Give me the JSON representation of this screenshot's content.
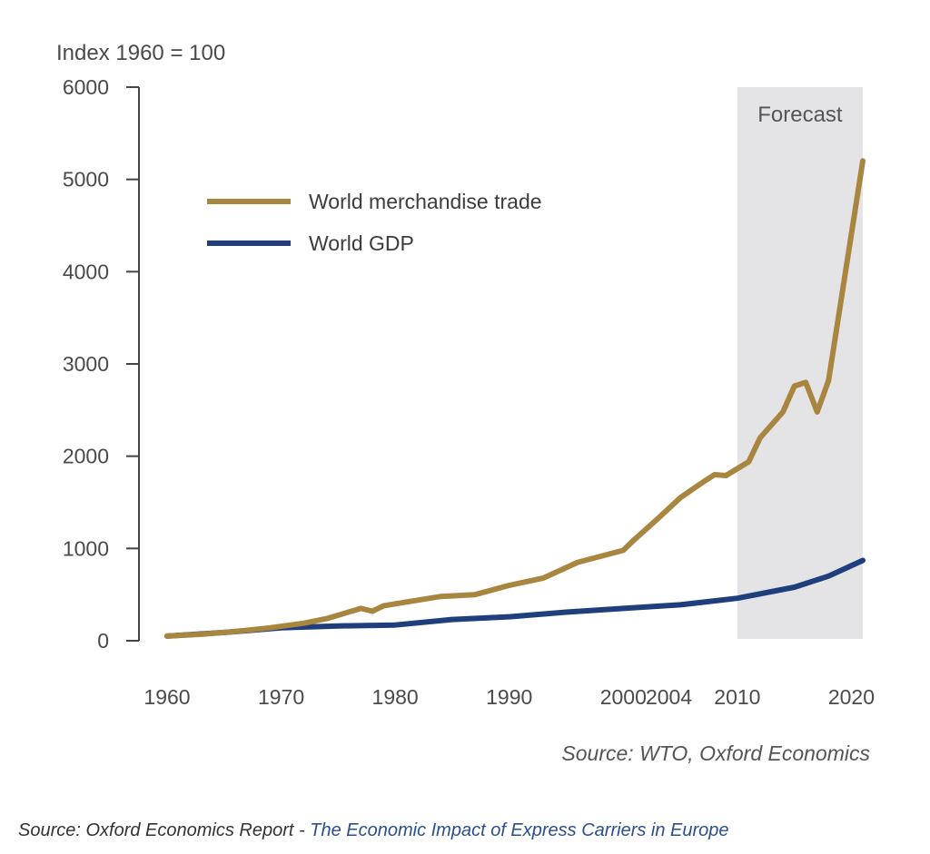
{
  "chart_data": {
    "type": "line",
    "ylabel": "Index 1960 = 100",
    "ylim": [
      0,
      6000
    ],
    "yticks": [
      0,
      1000,
      2000,
      3000,
      4000,
      5000,
      6000
    ],
    "xlim": [
      1960,
      2021
    ],
    "xticks": [
      1960,
      1970,
      1980,
      1990,
      2000,
      2004,
      2010,
      2020
    ],
    "forecast": {
      "label": "Forecast",
      "from": 2010,
      "to": 2021
    },
    "grid": false,
    "legend": "top-left",
    "series": [
      {
        "name": "World merchandise trade",
        "color": "#a8863f",
        "points": [
          [
            1960,
            50
          ],
          [
            1963,
            70
          ],
          [
            1966,
            100
          ],
          [
            1969,
            140
          ],
          [
            1972,
            190
          ],
          [
            1974,
            240
          ],
          [
            1977,
            350
          ],
          [
            1978,
            320
          ],
          [
            1979,
            380
          ],
          [
            1981,
            420
          ],
          [
            1984,
            480
          ],
          [
            1987,
            500
          ],
          [
            1990,
            600
          ],
          [
            1993,
            680
          ],
          [
            1996,
            850
          ],
          [
            2000,
            980
          ],
          [
            2001,
            1100
          ],
          [
            2003,
            1320
          ],
          [
            2005,
            1550
          ],
          [
            2007,
            1720
          ],
          [
            2008,
            1800
          ],
          [
            2009,
            1790
          ],
          [
            2011,
            1940
          ],
          [
            2012,
            2200
          ],
          [
            2014,
            2480
          ],
          [
            2015,
            2760
          ],
          [
            2016,
            2800
          ],
          [
            2017,
            2480
          ],
          [
            2018,
            2820
          ],
          [
            2021,
            5200
          ]
        ]
      },
      {
        "name": "World GDP",
        "color": "#1f3e7c",
        "points": [
          [
            1960,
            50
          ],
          [
            1965,
            90
          ],
          [
            1970,
            140
          ],
          [
            1975,
            160
          ],
          [
            1980,
            170
          ],
          [
            1985,
            230
          ],
          [
            1990,
            260
          ],
          [
            1995,
            310
          ],
          [
            2000,
            350
          ],
          [
            2005,
            390
          ],
          [
            2010,
            460
          ],
          [
            2015,
            580
          ],
          [
            2018,
            700
          ],
          [
            2021,
            870
          ]
        ]
      }
    ],
    "source_note": "Source: WTO, Oxford Economics"
  },
  "footer": {
    "prefix": "Source: Oxford Economics Report - ",
    "link_text": "The Economic Impact of Express Carriers in Europe"
  }
}
